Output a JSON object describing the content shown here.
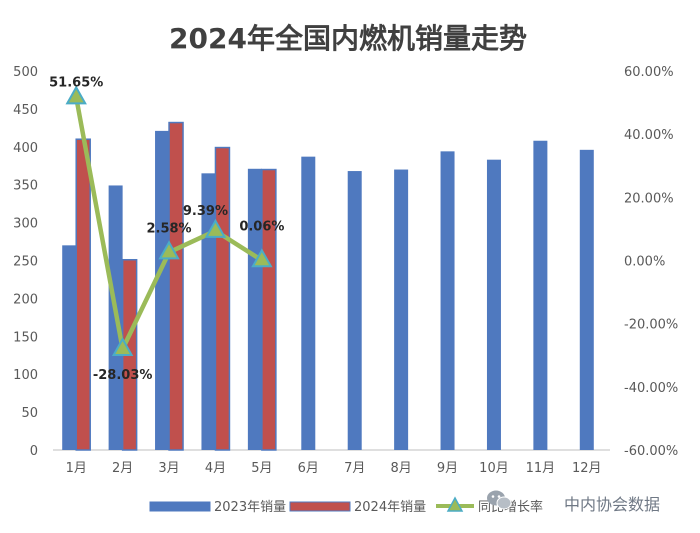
{
  "chart_data": {
    "type": "bar",
    "title": "2024年全国内燃机销量走势",
    "categories": [
      "1月",
      "2月",
      "3月",
      "4月",
      "5月",
      "6月",
      "7月",
      "8月",
      "9月",
      "10月",
      "11月",
      "12月"
    ],
    "y_left": {
      "ylim": [
        0,
        500
      ],
      "ticks": [
        0,
        50,
        100,
        150,
        200,
        250,
        300,
        350,
        400,
        450,
        500
      ]
    },
    "y_right": {
      "ylim": [
        -60,
        60
      ],
      "ticks": [
        -60,
        -40,
        -20,
        0,
        20,
        40,
        60
      ],
      "tick_labels": [
        "-60.00%",
        "-40.00%",
        "-20.00%",
        "0.00%",
        "20.00%",
        "40.00%",
        "60.00%"
      ]
    },
    "series": [
      {
        "name": "2023年销量",
        "type": "bar",
        "axis": "left",
        "color": "#4f79bf",
        "values": [
          270,
          349,
          421,
          365,
          371,
          387,
          368,
          370,
          394,
          383,
          408,
          396
        ]
      },
      {
        "name": "2024年销量",
        "type": "bar",
        "axis": "left",
        "color": "#c0504d",
        "values": [
          410,
          251,
          432,
          399,
          370,
          null,
          null,
          null,
          null,
          null,
          null,
          null
        ]
      },
      {
        "name": "同比增长率",
        "type": "line",
        "axis": "right",
        "color": "#9bbb59",
        "marker_color": "#4bacc6",
        "values": [
          51.65,
          -28.03,
          2.58,
          9.39,
          0.06,
          null,
          null,
          null,
          null,
          null,
          null,
          null
        ],
        "labels": [
          "51.65%",
          "-28.03%",
          "2.58%",
          "9.39%",
          "0.06%"
        ]
      }
    ],
    "legend_position": "bottom",
    "grid": false
  },
  "watermark": "中内协会数据",
  "watermark_icon": "wechat-icon"
}
